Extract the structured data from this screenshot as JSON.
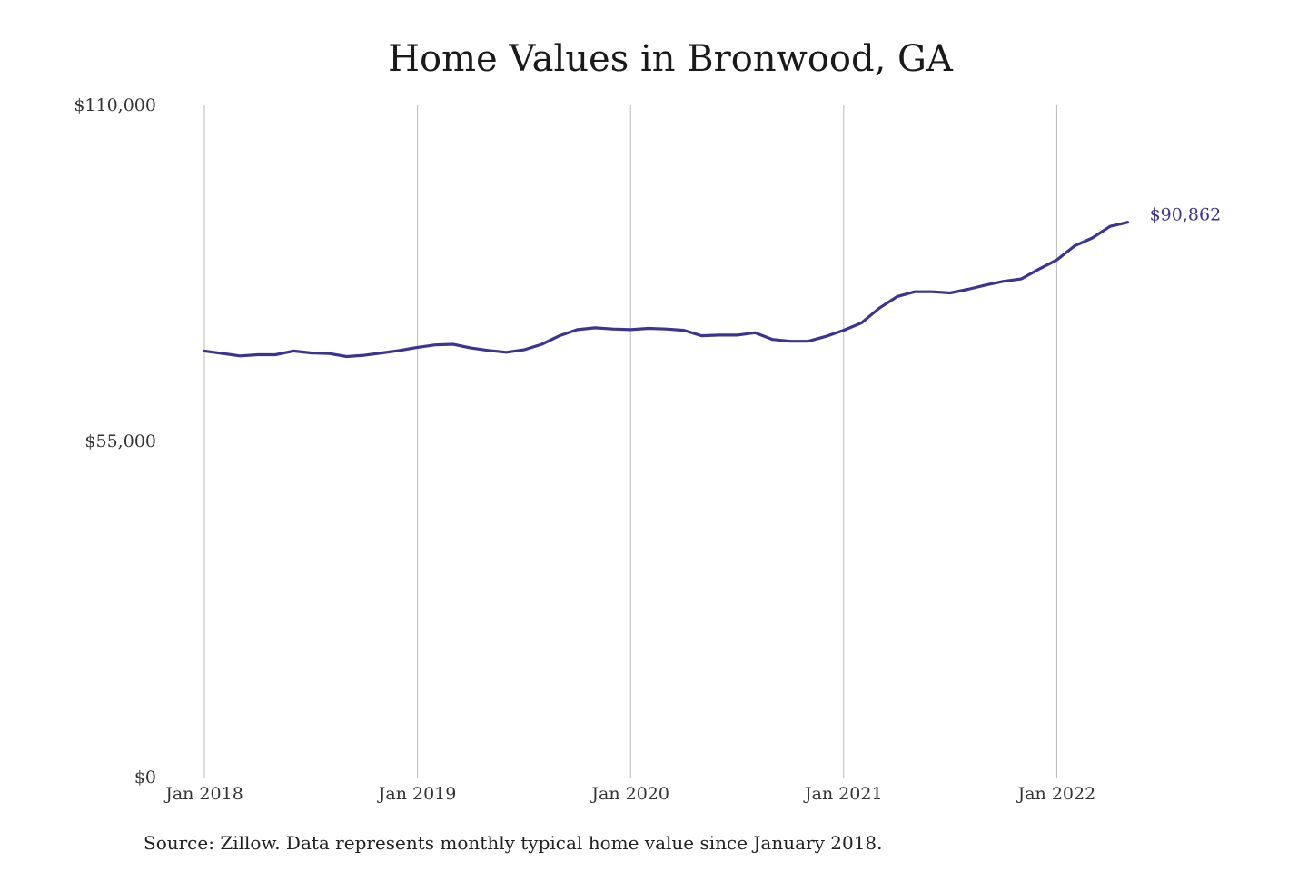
{
  "chart_data": {
    "type": "line",
    "title": "Home Values in Bronwood, GA",
    "xlabel": "",
    "ylabel": "",
    "ylim": [
      0,
      110000
    ],
    "yticks": [
      {
        "value": 0,
        "label": "$0"
      },
      {
        "value": 55000,
        "label": "$55,000"
      },
      {
        "value": 110000,
        "label": "$110,000"
      }
    ],
    "xlim": [
      "2018-01",
      "2022-05"
    ],
    "xticks": [
      {
        "value": "2018-01",
        "label": "Jan 2018"
      },
      {
        "value": "2019-01",
        "label": "Jan 2019"
      },
      {
        "value": "2020-01",
        "label": "Jan 2020"
      },
      {
        "value": "2021-01",
        "label": "Jan 2021"
      },
      {
        "value": "2022-01",
        "label": "Jan 2022"
      }
    ],
    "grid": "vertical",
    "line_color": "#3b3590",
    "end_label": "$90,862",
    "series": [
      {
        "x": [
          "2018-01",
          "2018-02",
          "2018-03",
          "2018-04",
          "2018-05",
          "2018-06",
          "2018-07",
          "2018-08",
          "2018-09",
          "2018-10",
          "2018-11",
          "2018-12",
          "2019-01",
          "2019-02",
          "2019-03",
          "2019-04",
          "2019-05",
          "2019-06",
          "2019-07",
          "2019-08",
          "2019-09",
          "2019-10",
          "2019-11",
          "2019-12",
          "2020-01",
          "2020-02",
          "2020-03",
          "2020-04",
          "2020-05",
          "2020-06",
          "2020-07",
          "2020-08",
          "2020-09",
          "2020-10",
          "2020-11",
          "2020-12",
          "2021-01",
          "2021-02",
          "2021-03",
          "2021-04",
          "2021-05",
          "2021-06",
          "2021-07",
          "2021-08",
          "2021-09",
          "2021-10",
          "2021-11",
          "2021-12",
          "2022-01",
          "2022-02",
          "2022-03",
          "2022-04",
          "2022-05"
        ],
        "values": [
          69800,
          69400,
          69000,
          69200,
          69200,
          69800,
          69500,
          69400,
          68900,
          69100,
          69500,
          69900,
          70400,
          70800,
          70900,
          70300,
          69900,
          69600,
          70000,
          70900,
          72300,
          73300,
          73600,
          73400,
          73300,
          73500,
          73400,
          73200,
          72300,
          72400,
          72400,
          72800,
          71700,
          71400,
          71400,
          72200,
          73200,
          74400,
          76800,
          78700,
          79500,
          79500,
          79300,
          79900,
          80600,
          81200,
          81600,
          83200,
          84700,
          87000,
          88300,
          90200,
          90862
        ]
      }
    ]
  },
  "source_note": "Source: Zillow. Data represents monthly typical home value since January 2018."
}
